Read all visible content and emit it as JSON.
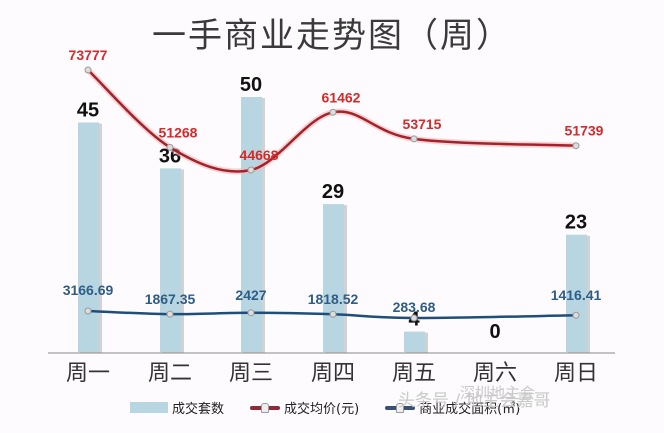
{
  "title": "一手商业走势图（周）",
  "chart_data": {
    "type": "bar+line",
    "title": "一手商业走势图（周）",
    "categories": [
      "周一",
      "周二",
      "周三",
      "周四",
      "周五",
      "周六",
      "周日"
    ],
    "series": [
      {
        "name": "成交套数",
        "type": "bar",
        "color": "#b8d6e2",
        "values": [
          45,
          36,
          50,
          29,
          4,
          0,
          23
        ],
        "labels": [
          "45",
          "36",
          "50",
          "29",
          "4",
          "0",
          "23"
        ]
      },
      {
        "name": "成交均价(元)",
        "type": "line",
        "color": "#c0282f",
        "values": [
          73777,
          51268,
          44668,
          61462,
          53715,
          null,
          51739
        ],
        "labels": [
          "73777",
          "51268",
          "44668",
          "61462",
          "53715",
          "",
          "51739"
        ]
      },
      {
        "name": "商业成交面积(㎡)",
        "type": "line",
        "color": "#1f4e79",
        "values": [
          3166.69,
          1867.35,
          2427,
          1818.52,
          283.68,
          null,
          1416.41
        ],
        "labels": [
          "3166.69",
          "1867.35",
          "2427",
          "1818.52",
          "283.68",
          "",
          "1416.41"
        ]
      }
    ],
    "xlabel": "",
    "ylabel": "",
    "grid": false,
    "legend_position": "bottom"
  },
  "legend": {
    "items": [
      {
        "label": "成交套数",
        "color": "#b8d6e2"
      },
      {
        "label": "成交均价(元)",
        "color": "#8e2a3a"
      },
      {
        "label": "商业成交面积(㎡)",
        "color": "#3a5070"
      }
    ]
  },
  "watermark": {
    "line1": "头条号 / 地主会嘉哥",
    "line2": "深圳地主会"
  }
}
